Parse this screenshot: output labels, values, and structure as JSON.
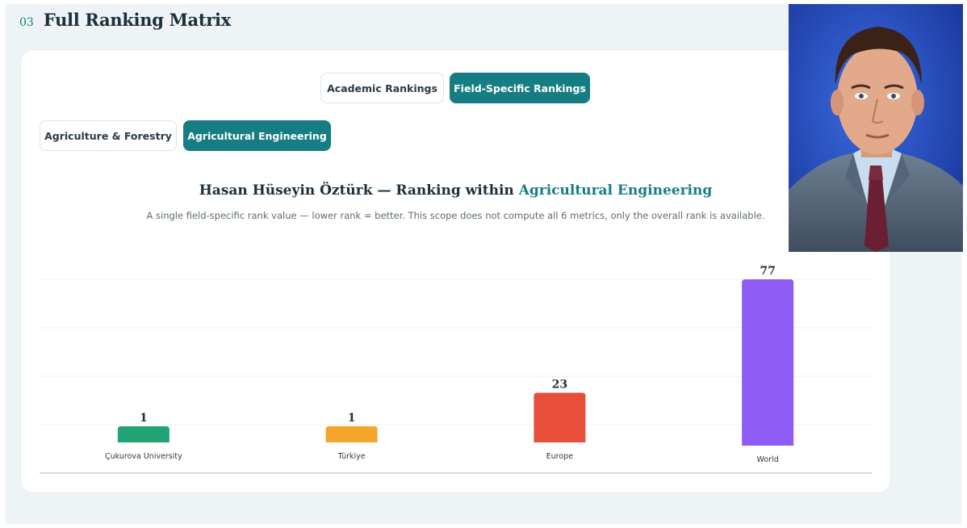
{
  "section": {
    "number": "03",
    "title": "Full Ranking Matrix"
  },
  "tabs_primary": [
    {
      "label": "Academic Rankings",
      "active": false
    },
    {
      "label": "Field-Specific Rankings",
      "active": true
    }
  ],
  "tabs_secondary": [
    {
      "label": "Agriculture & Forestry",
      "active": false
    },
    {
      "label": "Agricultural Engineering",
      "active": true
    }
  ],
  "chart_heading": {
    "prefix": "Hasan Hüseyin Öztürk — Ranking within ",
    "field": "Agricultural Engineering",
    "subtitle": "A single field-specific rank value — lower rank = better. This scope does not compute all 6 metrics, only the overall rank is available."
  },
  "chart_data": {
    "type": "bar",
    "title": "Hasan Hüseyin Öztürk — Ranking within Agricultural Engineering",
    "categories": [
      "Çukurova University",
      "Türkiye",
      "Europe",
      "World"
    ],
    "values": [
      1,
      1,
      23,
      77
    ],
    "colors": [
      "#22a374",
      "#f3a62b",
      "#e84f3a",
      "#8e5bf5"
    ],
    "grid": true,
    "ylim": [
      0,
      80
    ]
  },
  "portrait": {
    "icon": "person-photo"
  }
}
